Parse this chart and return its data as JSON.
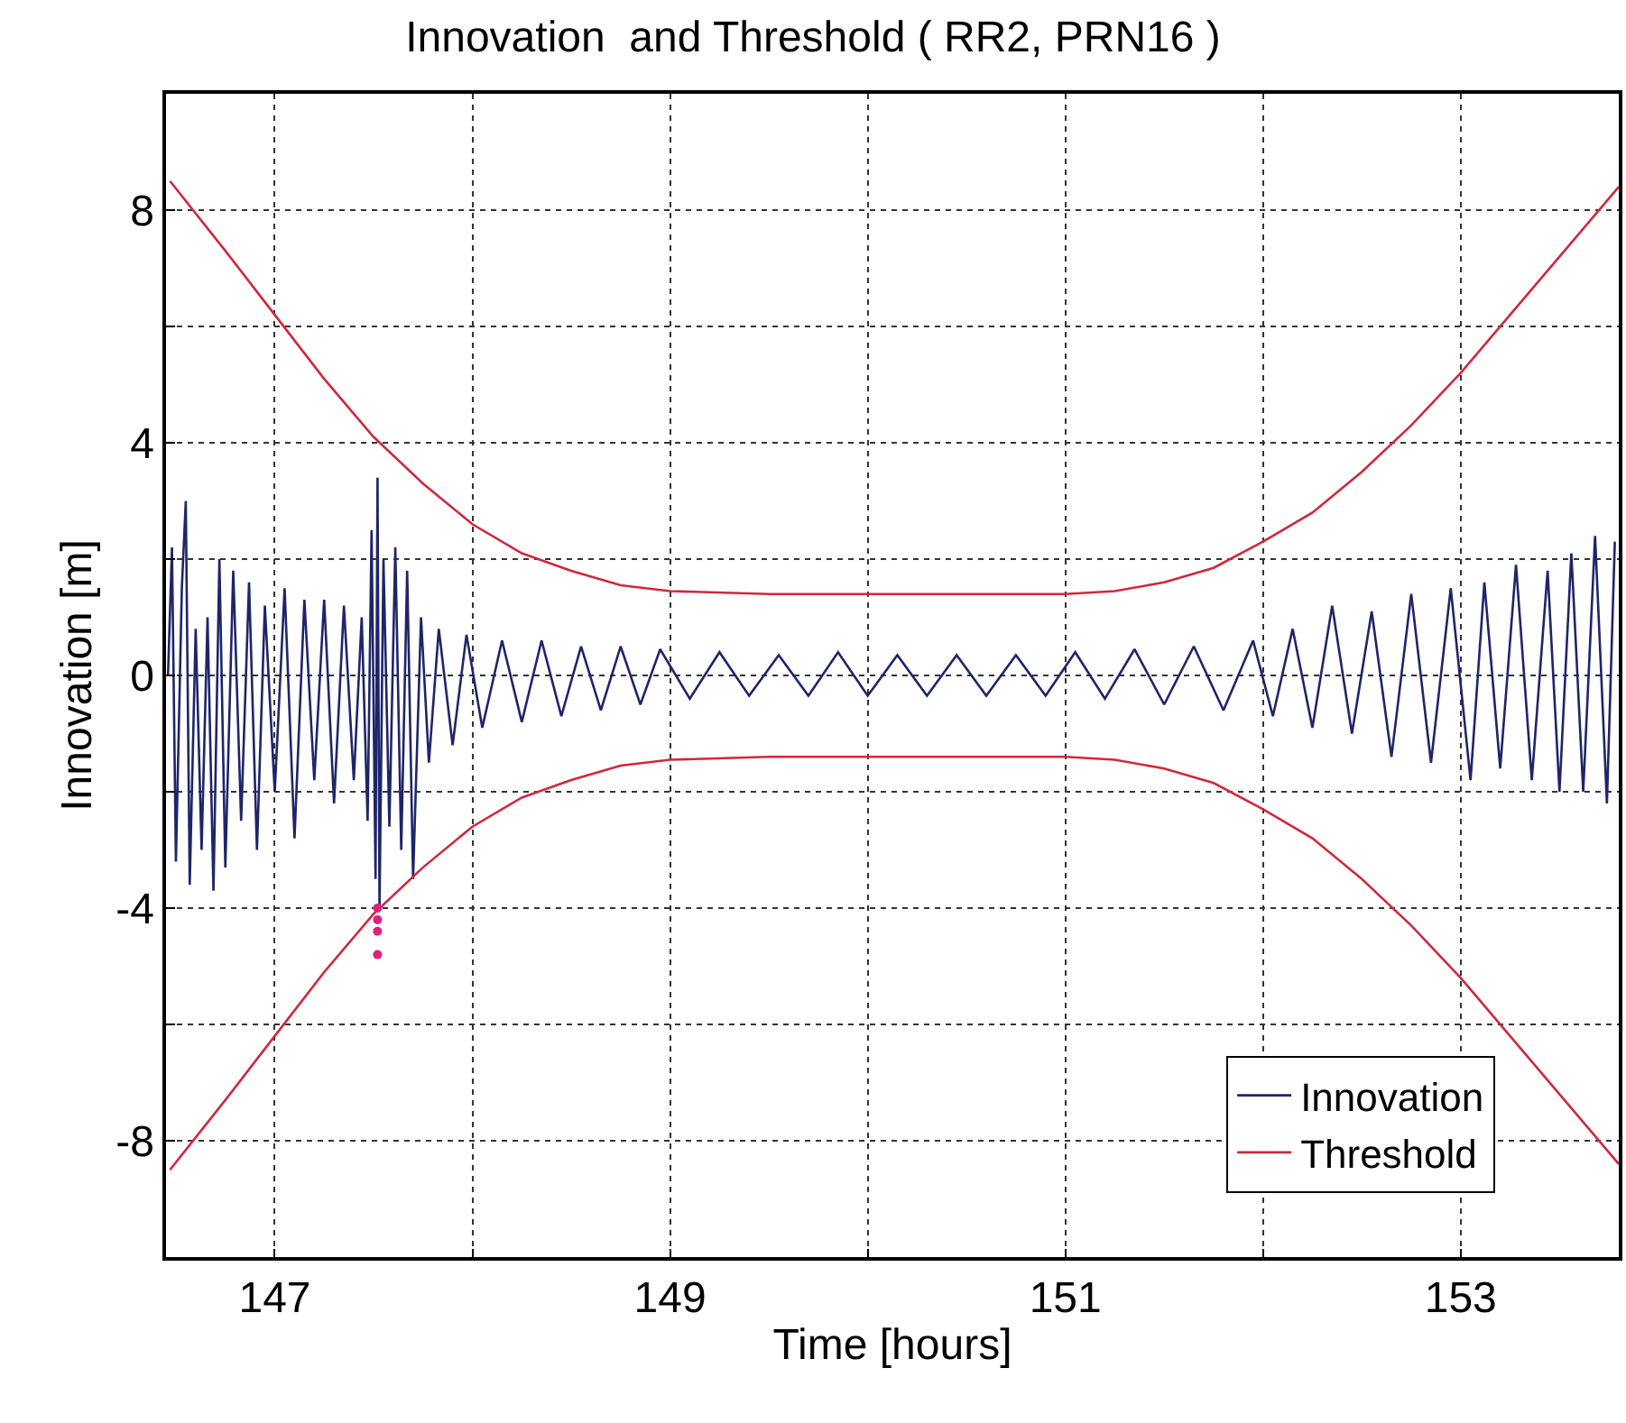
{
  "chart_data": {
    "type": "line",
    "title": "Innovation  and Threshold ( RR2, PRN16 )",
    "xlabel": "Time [hours]",
    "ylabel": "Innovation [m]",
    "xlim": [
      146.45,
      153.8
    ],
    "ylim": [
      -10,
      10
    ],
    "xticks": [
      147,
      {
        "value": 148,
        "label": null
      },
      149,
      {
        "value": 150,
        "label": null
      },
      151,
      {
        "value": 152,
        "label": null
      },
      153
    ],
    "yticks": [
      {
        "value": -10,
        "label": null
      },
      -8,
      {
        "value": -6,
        "label": null
      },
      -4,
      {
        "value": -2,
        "label": null
      },
      0,
      {
        "value": 2,
        "label": null
      },
      4,
      {
        "value": 6,
        "label": null
      },
      8,
      {
        "value": 10,
        "label": null
      }
    ],
    "grid": true,
    "legend": "bottom right",
    "line_style": "solid",
    "series": [
      {
        "name": "Innovation",
        "color": "#1f2569",
        "x": [
          146.46,
          146.48,
          146.5,
          146.53,
          146.55,
          146.57,
          146.6,
          146.63,
          146.66,
          146.69,
          146.72,
          146.75,
          146.79,
          146.83,
          146.87,
          146.91,
          146.95,
          147.0,
          147.05,
          147.1,
          147.15,
          147.2,
          147.25,
          147.3,
          147.35,
          147.4,
          147.44,
          147.47,
          147.49,
          147.51,
          147.52,
          147.53,
          147.55,
          147.58,
          147.61,
          147.64,
          147.67,
          147.7,
          147.74,
          147.78,
          147.83,
          147.9,
          147.97,
          148.05,
          148.15,
          148.25,
          148.35,
          148.45,
          148.55,
          148.65,
          148.75,
          148.85,
          148.95,
          149.1,
          149.25,
          149.4,
          149.55,
          149.7,
          149.85,
          150.0,
          150.15,
          150.3,
          150.45,
          150.6,
          150.75,
          150.9,
          151.05,
          151.2,
          151.35,
          151.5,
          151.65,
          151.8,
          151.95,
          152.05,
          152.15,
          152.25,
          152.35,
          152.45,
          152.55,
          152.65,
          152.75,
          152.85,
          152.95,
          153.05,
          153.12,
          153.2,
          153.28,
          153.36,
          153.44,
          153.5,
          153.56,
          153.62,
          153.68,
          153.74,
          153.78
        ],
        "values": [
          0,
          2.2,
          -3.2,
          1.5,
          3.0,
          -3.6,
          0.8,
          -3.0,
          1.0,
          -3.7,
          2.0,
          -3.3,
          1.8,
          -2.5,
          1.6,
          -3.0,
          1.2,
          -2.0,
          1.5,
          -2.8,
          1.3,
          -1.8,
          1.3,
          -2.2,
          1.2,
          -1.8,
          1.0,
          -2.5,
          2.5,
          -3.5,
          3.4,
          -4.0,
          2.0,
          -2.6,
          2.2,
          -3.0,
          1.8,
          -3.5,
          1.0,
          -1.5,
          0.8,
          -1.2,
          0.7,
          -0.9,
          0.6,
          -0.8,
          0.6,
          -0.7,
          0.5,
          -0.6,
          0.5,
          -0.5,
          0.45,
          -0.4,
          0.4,
          -0.35,
          0.35,
          -0.35,
          0.4,
          -0.35,
          0.35,
          -0.35,
          0.35,
          -0.35,
          0.35,
          -0.35,
          0.4,
          -0.4,
          0.45,
          -0.5,
          0.5,
          -0.6,
          0.6,
          -0.7,
          0.8,
          -0.9,
          1.2,
          -1.0,
          1.1,
          -1.4,
          1.4,
          -1.5,
          1.5,
          -1.8,
          1.6,
          -1.6,
          1.9,
          -1.8,
          1.8,
          -2.0,
          2.1,
          -2.0,
          2.4,
          -2.2,
          2.3
        ]
      },
      {
        "name": "Threshold",
        "color": "#d0283c",
        "x": [
          146.47,
          146.75,
          147,
          147.25,
          147.5,
          147.75,
          148,
          148.25,
          148.5,
          148.75,
          149,
          149.5,
          150,
          150.5,
          151,
          151.25,
          151.5,
          151.75,
          152,
          152.25,
          152.5,
          152.75,
          153,
          153.25,
          153.5,
          153.8
        ],
        "values": [
          8.5,
          7.3,
          6.2,
          5.1,
          4.1,
          3.3,
          2.6,
          2.1,
          1.8,
          1.55,
          1.45,
          1.4,
          1.4,
          1.4,
          1.4,
          1.45,
          1.6,
          1.85,
          2.3,
          2.8,
          3.5,
          4.3,
          5.2,
          6.2,
          7.2,
          8.4
        ]
      },
      {
        "color": "#d0283c",
        "x": [
          146.47,
          146.75,
          147,
          147.25,
          147.5,
          147.75,
          148,
          148.25,
          148.5,
          148.75,
          149,
          149.5,
          150,
          150.5,
          151,
          151.25,
          151.5,
          151.75,
          152,
          152.25,
          152.5,
          152.75,
          153,
          153.25,
          153.5,
          153.8
        ],
        "values": [
          -8.5,
          -7.3,
          -6.2,
          -5.1,
          -4.1,
          -3.3,
          -2.6,
          -2.1,
          -1.8,
          -1.55,
          -1.45,
          -1.4,
          -1.4,
          -1.4,
          -1.4,
          -1.45,
          -1.6,
          -1.85,
          -2.3,
          -2.8,
          -3.5,
          -4.3,
          -5.2,
          -6.2,
          -7.2,
          -8.4
        ]
      },
      {
        "type": "scatter",
        "marker": "circle",
        "color": "#e0207f",
        "x": [
          147.52,
          147.52,
          147.52,
          147.52
        ],
        "values": [
          -4.0,
          -4.2,
          -4.4,
          -4.8
        ]
      }
    ]
  }
}
